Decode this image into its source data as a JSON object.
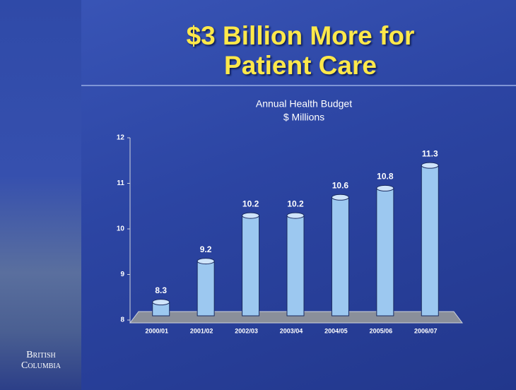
{
  "slide": {
    "title": "$3 Billion More for Patient Care",
    "logo": [
      "British",
      "Columbia"
    ]
  },
  "chart_data": {
    "type": "bar",
    "title": "Annual Health Budget",
    "subtitle": "$ Millions",
    "categories": [
      "2000/01",
      "2001/02",
      "2002/03",
      "2003/04",
      "2004/05",
      "2005/06",
      "2006/07"
    ],
    "values": [
      8.3,
      9.2,
      10.2,
      10.2,
      10.6,
      10.8,
      11.3
    ],
    "color": "#9cc8f0",
    "ylim": [
      8,
      12
    ],
    "yticks": [
      8,
      9,
      10,
      11,
      12
    ],
    "grid": false
  }
}
